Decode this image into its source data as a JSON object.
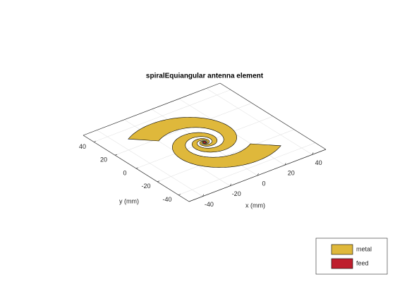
{
  "chart_data": {
    "type": "antenna-3d",
    "title": "spiralEquiangular antenna element",
    "xlabel": "x (mm)",
    "ylabel": "y (mm)",
    "xlim": [
      -50,
      50
    ],
    "ylim": [
      -50,
      50
    ],
    "xticks": [
      -40,
      -20,
      0,
      20,
      40
    ],
    "yticks": [
      -40,
      -20,
      0,
      20,
      40
    ],
    "grid": true,
    "legend": [
      {
        "name": "metal",
        "color": "#dfb83b"
      },
      {
        "name": "feed",
        "color": "#be1e2d"
      }
    ]
  }
}
